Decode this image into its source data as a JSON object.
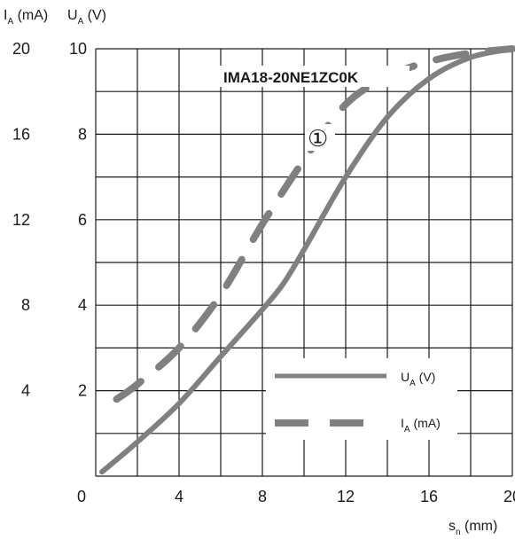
{
  "chart_data": {
    "type": "line",
    "title": "IMA18-20NE1ZC0K",
    "annotation": "①",
    "x_axis": {
      "label_main": "s",
      "label_sub": "n",
      "label_unit": " (mm)",
      "range": [
        0,
        20
      ],
      "ticks": [
        0,
        4,
        8,
        12,
        16,
        20
      ],
      "tick_labels": [
        "0",
        "4",
        "8",
        "12",
        "16",
        "20"
      ]
    },
    "y_axis_current": {
      "label_main": "I",
      "label_sub": "A",
      "label_unit": " (mA)",
      "range": [
        0,
        20
      ],
      "ticks": [
        4,
        8,
        12,
        16,
        20
      ],
      "tick_labels": [
        "4",
        "8",
        "12",
        "16",
        "20"
      ]
    },
    "y_axis_voltage": {
      "label_main": "U",
      "label_sub": "A",
      "label_unit": " (V)",
      "range": [
        0,
        10
      ],
      "ticks": [
        0,
        2,
        4,
        6,
        8,
        10
      ],
      "tick_labels": [
        "0",
        "2",
        "4",
        "6",
        "8",
        "10"
      ]
    },
    "grid": true,
    "series": [
      {
        "name_main": "U",
        "name_sub": "A",
        "name_unit": " (V)",
        "style": "solid",
        "axis": "voltage",
        "x": [
          0.3,
          2,
          4,
          6,
          8,
          9,
          10,
          12,
          14,
          16,
          18,
          20
        ],
        "y": [
          0.1,
          0.8,
          1.7,
          2.8,
          3.9,
          4.5,
          5.3,
          7.0,
          8.4,
          9.3,
          9.8,
          10.0
        ]
      },
      {
        "name_main": "I",
        "name_sub": "A",
        "name_unit": " (mA)",
        "style": "dashed",
        "axis": "current",
        "x": [
          1,
          2,
          4,
          6,
          8,
          10,
          12,
          14,
          16,
          18,
          20
        ],
        "y": [
          3.6,
          4.3,
          6.0,
          8.5,
          11.8,
          14.8,
          17.4,
          18.7,
          19.4,
          19.8,
          20.0
        ]
      }
    ],
    "legend_position": "bottom-right",
    "colors": {
      "series": "#808080",
      "grid": "#1a1a1a",
      "text": "#1a1a1a"
    }
  }
}
